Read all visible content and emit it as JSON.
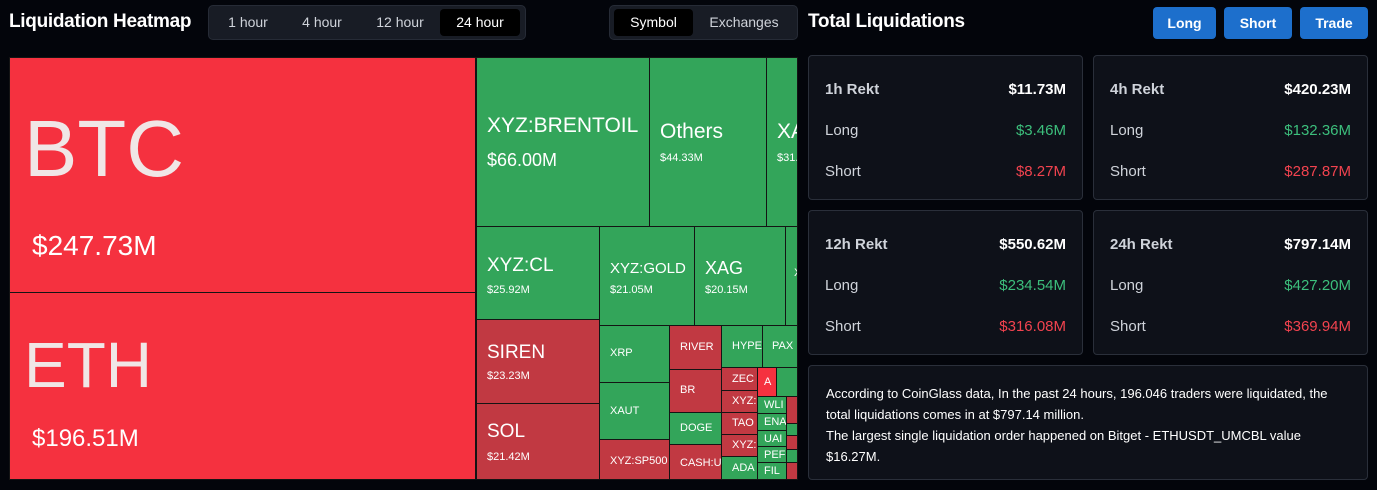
{
  "header": {
    "title": "Liquidation Heatmap"
  },
  "time_tabs": [
    {
      "label": "1 hour",
      "active": false
    },
    {
      "label": "4 hour",
      "active": false
    },
    {
      "label": "12 hour",
      "active": false
    },
    {
      "label": "24 hour",
      "active": true
    }
  ],
  "view_tabs": [
    {
      "label": "Symbol",
      "active": true
    },
    {
      "label": "Exchanges",
      "active": false
    }
  ],
  "panel": {
    "title": "Total Liquidations"
  },
  "actions": {
    "long": "Long",
    "short": "Short",
    "trade": "Trade"
  },
  "colors": {
    "long_value": "#3cbf7c",
    "short_value": "#f2434f",
    "accent": "#1d6fcc",
    "liq_short_tile": "#33a55a",
    "liq_long_tile": "#f5313f"
  },
  "heatmap": [
    {
      "name": "BTC",
      "value": "$247.73M"
    },
    {
      "name": "ETH",
      "value": "$196.51M"
    },
    {
      "name": "XYZ:BRENTOIL",
      "value": "$66.00M"
    },
    {
      "name": "Others",
      "value": "$44.33M"
    },
    {
      "name": "XA",
      "value": "$31."
    },
    {
      "name": "XYZ:CL",
      "value": "$25.92M"
    },
    {
      "name": "XYZ:GOLD",
      "value": "$21.05M"
    },
    {
      "name": "XAG",
      "value": "$20.15M"
    },
    {
      "name": "X",
      "value": ""
    },
    {
      "name": "SIREN",
      "value": "$23.23M"
    },
    {
      "name": "SOL",
      "value": "$21.42M"
    },
    {
      "name": "XRP",
      "value": ""
    },
    {
      "name": "XAUT",
      "value": ""
    },
    {
      "name": "XYZ:SP500",
      "value": ""
    },
    {
      "name": "RIVER",
      "value": ""
    },
    {
      "name": "BR",
      "value": ""
    },
    {
      "name": "DOGE",
      "value": ""
    },
    {
      "name": "CASH:U",
      "value": ""
    },
    {
      "name": "HYPE",
      "value": ""
    },
    {
      "name": "PAX",
      "value": ""
    },
    {
      "name": "ZEC",
      "value": ""
    },
    {
      "name": "A",
      "value": ""
    },
    {
      "name": "XYZ:",
      "value": ""
    },
    {
      "name": "TAO",
      "value": ""
    },
    {
      "name": "XYZ:",
      "value": ""
    },
    {
      "name": "ADA",
      "value": ""
    },
    {
      "name": "WLI",
      "value": ""
    },
    {
      "name": "ENA",
      "value": ""
    },
    {
      "name": "UAI",
      "value": ""
    },
    {
      "name": "PEF",
      "value": ""
    },
    {
      "name": "FIL",
      "value": ""
    }
  ],
  "stats": [
    {
      "period": "1h Rekt",
      "total": "$11.73M",
      "long_label": "Long",
      "long": "$3.46M",
      "short_label": "Short",
      "short": "$8.27M"
    },
    {
      "period": "4h Rekt",
      "total": "$420.23M",
      "long_label": "Long",
      "long": "$132.36M",
      "short_label": "Short",
      "short": "$287.87M"
    },
    {
      "period": "12h Rekt",
      "total": "$550.62M",
      "long_label": "Long",
      "long": "$234.54M",
      "short_label": "Short",
      "short": "$316.08M"
    },
    {
      "period": "24h Rekt",
      "total": "$797.14M",
      "long_label": "Long",
      "long": "$427.20M",
      "short_label": "Short",
      "short": "$369.94M"
    }
  ],
  "summary": {
    "line1": "According to CoinGlass data, In the past 24 hours, 196.046 traders were liquidated, the total liquidations comes in at $797.14 million.",
    "line2": "The largest single liquidation order happened on Bitget - ETHUSDT_UMCBL value $16.27M."
  }
}
